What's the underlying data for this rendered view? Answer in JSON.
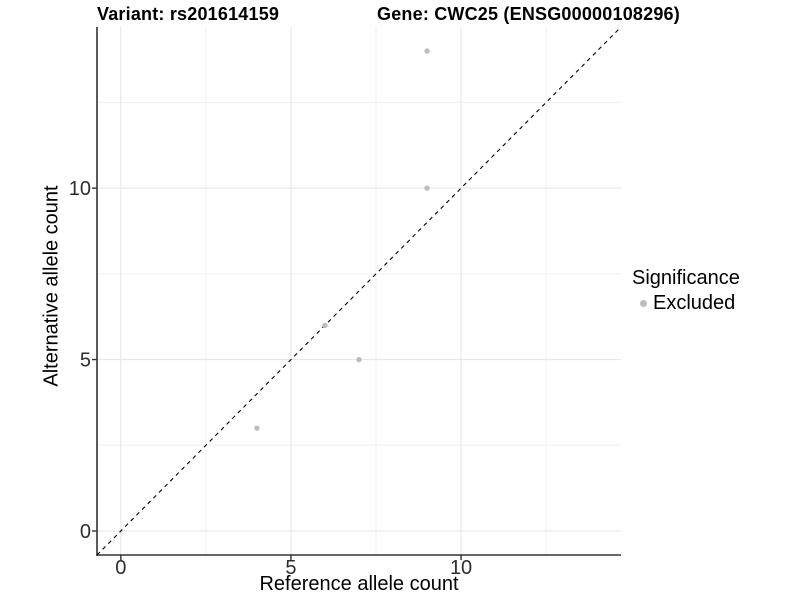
{
  "chart_data": {
    "type": "scatter",
    "title_left": "Variant: rs201614159",
    "title_right": "Gene: CWC25 (ENSG00000108296)",
    "xlabel": "Reference allele count",
    "ylabel": "Alternative allele count",
    "xlim": [
      -0.7,
      14.7
    ],
    "ylim": [
      -0.7,
      14.7
    ],
    "x_ticks": [
      0,
      5,
      10
    ],
    "y_ticks": [
      0,
      5,
      10
    ],
    "x_minor_ticks": [
      2.5,
      7.5,
      12.5
    ],
    "y_minor_ticks": [
      2.5,
      7.5,
      12.5
    ],
    "grid": "major+minor",
    "identity_line": {
      "equation": "y = x",
      "style": "dashed",
      "color": "#000000"
    },
    "series": [
      {
        "name": "Excluded",
        "color": "#bdbdbd",
        "points": [
          [
            4,
            3
          ],
          [
            6,
            6
          ],
          [
            7,
            5
          ],
          [
            9,
            10
          ],
          [
            9,
            14
          ]
        ]
      }
    ],
    "legend": {
      "title": "Significance",
      "position": "right",
      "items": [
        {
          "label": "Excluded",
          "color": "#bdbdbd",
          "marker": "circle"
        }
      ]
    }
  },
  "colors": {
    "background": "#ffffff",
    "grid_major": "#e4e4e4",
    "grid_minor": "#f0f0f0",
    "axis_line": "#333333",
    "tick_label": "#2e2e2e",
    "point": "#bdbdbd"
  }
}
